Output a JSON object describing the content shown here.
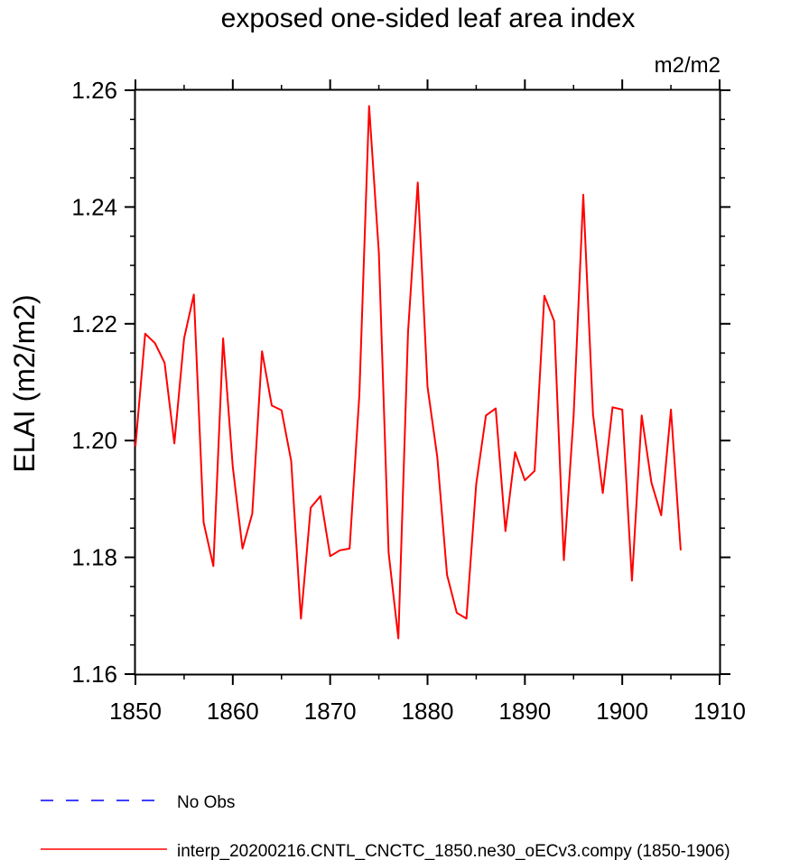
{
  "chart_data": {
    "type": "line",
    "title": "exposed one-sided leaf area index",
    "units_label": "m2/m2",
    "ylabel": "ELAI  (m2/m2)",
    "xlabel": "",
    "xlim": [
      1850,
      1910
    ],
    "ylim": [
      1.16,
      1.26
    ],
    "x_ticks": [
      1850,
      1860,
      1870,
      1880,
      1890,
      1900,
      1910
    ],
    "y_ticks": [
      1.16,
      1.18,
      1.2,
      1.22,
      1.24,
      1.26
    ],
    "x_tick_labels": [
      "1850",
      "1860",
      "1870",
      "1880",
      "1890",
      "1900",
      "1910"
    ],
    "y_tick_labels": [
      "1.16",
      "1.18",
      "1.20",
      "1.22",
      "1.24",
      "1.26"
    ],
    "grid": false,
    "legend_position": "bottom",
    "series": [
      {
        "name": "No Obs",
        "color": "#0000ff",
        "dashed": true,
        "x": [],
        "values": []
      },
      {
        "name": "interp_20200216.CNTL_CNCTC_1850.ne30_oECv3.compy (1850-1906)",
        "color": "#ff0000",
        "dashed": false,
        "x": [
          1850,
          1851,
          1852,
          1853,
          1854,
          1855,
          1856,
          1857,
          1858,
          1859,
          1860,
          1861,
          1862,
          1863,
          1864,
          1865,
          1866,
          1867,
          1868,
          1869,
          1870,
          1871,
          1872,
          1873,
          1874,
          1875,
          1876,
          1877,
          1878,
          1879,
          1880,
          1881,
          1882,
          1883,
          1884,
          1885,
          1886,
          1887,
          1888,
          1889,
          1890,
          1891,
          1892,
          1893,
          1894,
          1895,
          1896,
          1897,
          1898,
          1899,
          1900,
          1901,
          1902,
          1903,
          1904,
          1905,
          1906
        ],
        "values": [
          1.199,
          1.2183,
          1.2167,
          1.2133,
          1.1995,
          1.2175,
          1.225,
          1.186,
          1.1785,
          1.2175,
          1.1955,
          1.1815,
          1.1875,
          1.2153,
          1.206,
          1.2052,
          1.1965,
          1.1695,
          1.1885,
          1.1905,
          1.1802,
          1.1812,
          1.1815,
          1.2078,
          1.2573,
          1.2322,
          1.1808,
          1.1661,
          1.2185,
          1.2442,
          1.2092,
          1.1972,
          1.177,
          1.1705,
          1.1695,
          1.1925,
          1.2043,
          1.2055,
          1.1845,
          1.198,
          1.1932,
          1.1948,
          1.2248,
          1.2205,
          1.1795,
          1.2042,
          1.2421,
          1.2045,
          1.191,
          1.2057,
          1.2053,
          1.176,
          1.2043,
          1.1928,
          1.1872,
          1.2053,
          1.1812
        ]
      }
    ]
  }
}
